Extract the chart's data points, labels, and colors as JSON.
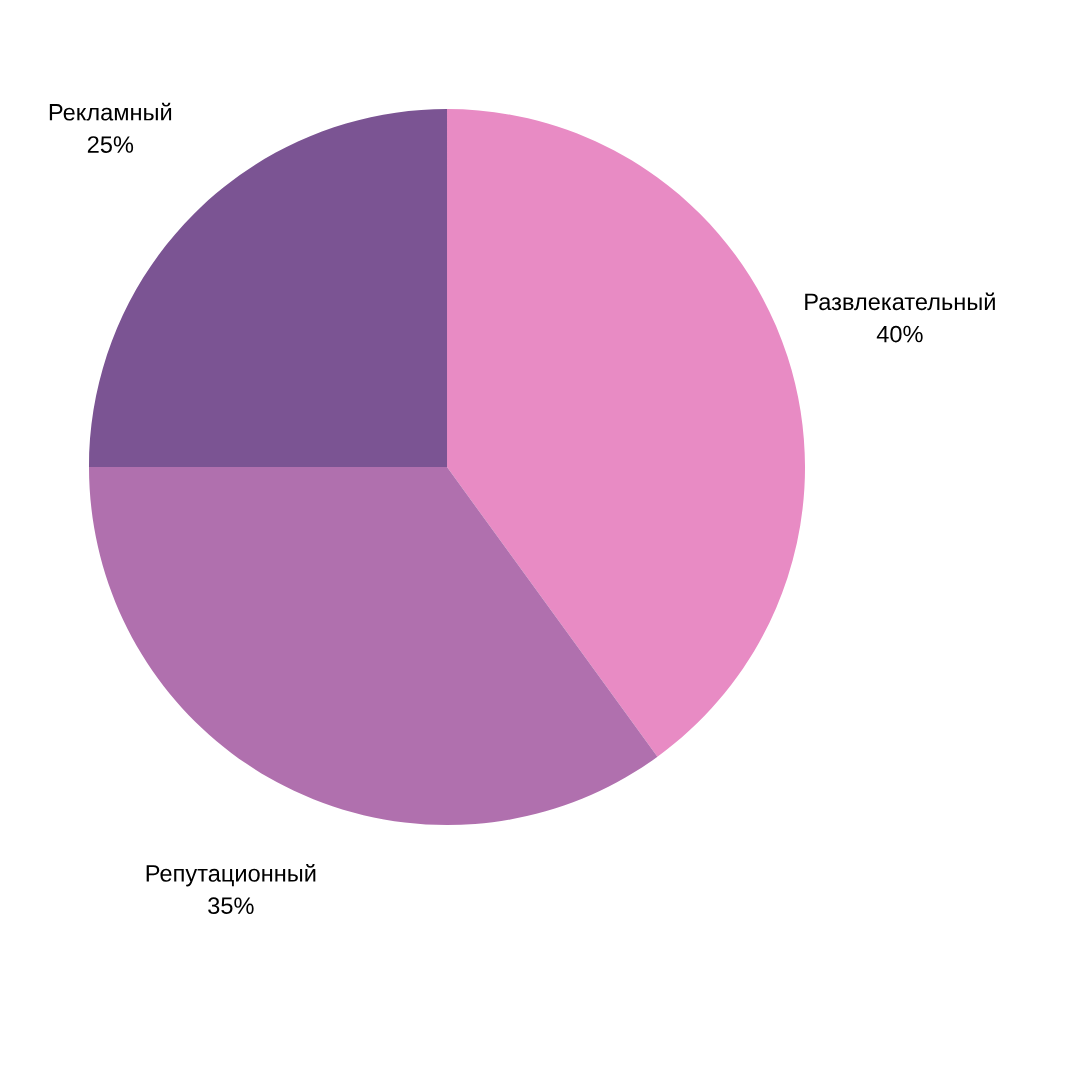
{
  "chart_data": {
    "type": "pie",
    "categories": [
      "Развлекательный",
      "Репутационный",
      "Рекламный"
    ],
    "values": [
      40,
      35,
      25
    ],
    "value_labels": [
      "40%",
      "35%",
      "25%"
    ],
    "colors": [
      "#e88bc4",
      "#b070ae",
      "#7b5493"
    ],
    "legend": false
  }
}
